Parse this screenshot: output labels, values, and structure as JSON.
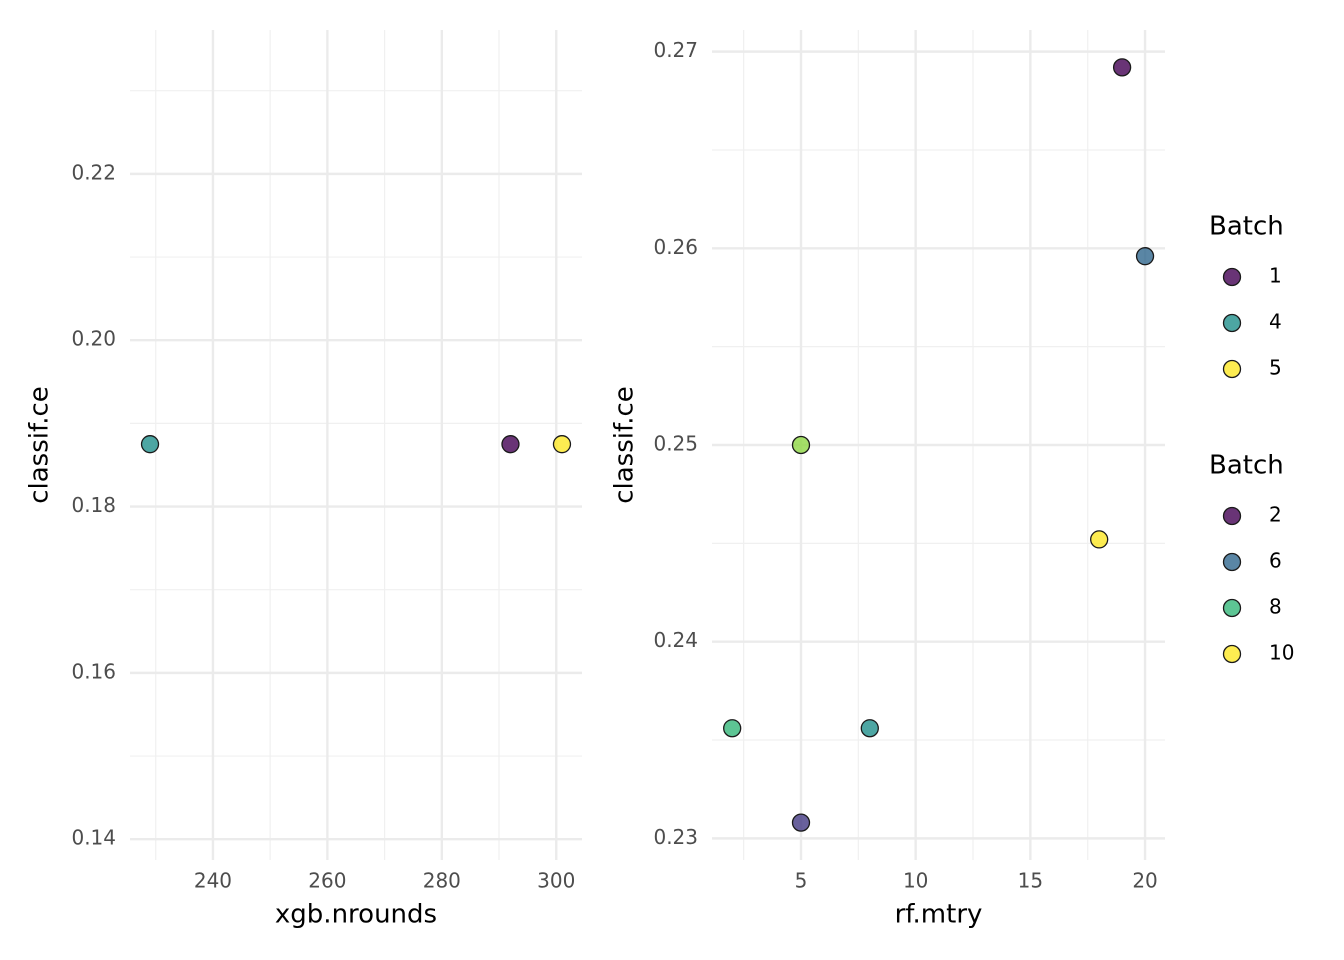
{
  "chart_data": [
    {
      "type": "scatter",
      "x_label": "xgb.nrounds",
      "y_label": "classif.ce",
      "x": [
        229,
        292,
        301
      ],
      "y": [
        0.1875,
        0.1875,
        0.1875
      ],
      "colors": [
        "#21908C",
        "#440154",
        "#FDE725"
      ],
      "xlim": [
        225.5,
        304.5
      ],
      "ylim": [
        0.1375,
        0.2373
      ],
      "xticks": [
        240,
        260,
        280,
        300
      ],
      "xminor": [
        230,
        250,
        270,
        290
      ],
      "yticks": [
        0.14,
        0.16,
        0.18,
        {
          "value": 0.2,
          "label": "0.20"
        },
        0.22
      ],
      "yminor": [
        0.15,
        0.17,
        0.19,
        0.21,
        0.23
      ],
      "grid": true,
      "legend": {
        "title": "Batch",
        "items": [
          {
            "label": "1",
            "color": "#440154"
          },
          {
            "label": "4",
            "color": "#21908C"
          },
          {
            "label": "5",
            "color": "#FDE725"
          }
        ]
      }
    },
    {
      "type": "scatter",
      "x_label": "rf.mtry",
      "y_label": "classif.ce",
      "x": [
        19,
        20,
        5,
        18,
        2,
        8,
        5
      ],
      "y": [
        0.2692,
        0.2596,
        0.25,
        0.2452,
        0.2356,
        0.2356,
        0.2308
      ],
      "colors": [
        "#440154",
        "#31688E",
        "#8FD744",
        "#FDE725",
        "#35B779",
        "#21908C",
        "#443A83"
      ],
      "xlim": [
        1.12,
        20.87
      ],
      "ylim": [
        0.2289,
        0.2711
      ],
      "xticks": [
        5,
        10,
        15,
        20
      ],
      "xminor": [
        2.5,
        7.5,
        12.5,
        17.5
      ],
      "yticks": [
        0.23,
        0.24,
        0.25,
        0.26,
        0.27
      ],
      "yminor": [
        0.235,
        0.245,
        0.255,
        0.265
      ],
      "grid": true,
      "legend": {
        "title": "Batch",
        "items": [
          {
            "label": "2",
            "color": "#440154"
          },
          {
            "label": "6",
            "color": "#31688E"
          },
          {
            "label": "8",
            "color": "#35B779"
          },
          {
            "label": "10",
            "color": "#FDE725"
          }
        ]
      }
    }
  ]
}
